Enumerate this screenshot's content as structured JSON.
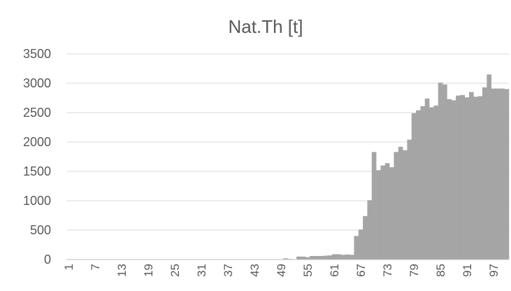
{
  "chart_data": {
    "type": "bar",
    "title": "Nat.Th [t]",
    "xlabel": "",
    "ylabel": "",
    "ylim": [
      0,
      3500
    ],
    "yticks": [
      0,
      500,
      1000,
      1500,
      2000,
      2500,
      3000,
      3500
    ],
    "xtick_labels": [
      "1",
      "7",
      "13",
      "19",
      "25",
      "31",
      "37",
      "43",
      "49",
      "55",
      "61",
      "67",
      "73",
      "79",
      "85",
      "91",
      "97"
    ],
    "grid": true,
    "legend": "none",
    "bar_color": "#a5a5a5",
    "categories": [
      1,
      2,
      3,
      4,
      5,
      6,
      7,
      8,
      9,
      10,
      11,
      12,
      13,
      14,
      15,
      16,
      17,
      18,
      19,
      20,
      21,
      22,
      23,
      24,
      25,
      26,
      27,
      28,
      29,
      30,
      31,
      32,
      33,
      34,
      35,
      36,
      37,
      38,
      39,
      40,
      41,
      42,
      43,
      44,
      45,
      46,
      47,
      48,
      49,
      50,
      51,
      52,
      53,
      54,
      55,
      56,
      57,
      58,
      59,
      60,
      61,
      62,
      63,
      64,
      65,
      66,
      67,
      68,
      69,
      70,
      71,
      72,
      73,
      74,
      75,
      76,
      77,
      78,
      79,
      80,
      81,
      82,
      83,
      84,
      85,
      86,
      87,
      88,
      89,
      90,
      91,
      92,
      93,
      94,
      95,
      96,
      97,
      98,
      99,
      100
    ],
    "values": [
      0,
      0,
      0,
      0,
      0,
      0,
      0,
      0,
      0,
      0,
      0,
      0,
      0,
      0,
      0,
      0,
      0,
      0,
      0,
      0,
      0,
      0,
      0,
      0,
      0,
      0,
      0,
      0,
      0,
      0,
      0,
      0,
      0,
      0,
      0,
      0,
      0,
      0,
      0,
      0,
      0,
      0,
      0,
      0,
      0,
      0,
      0,
      0,
      0,
      20,
      10,
      5,
      50,
      50,
      40,
      60,
      60,
      60,
      65,
      70,
      90,
      90,
      80,
      85,
      80,
      400,
      510,
      740,
      1010,
      1830,
      1520,
      1600,
      1640,
      1570,
      1830,
      1920,
      1860,
      2040,
      2490,
      2540,
      2610,
      2740,
      2590,
      2620,
      3010,
      2980,
      2730,
      2710,
      2790,
      2800,
      2760,
      2850,
      2770,
      2780,
      2930,
      3150,
      2910,
      2910,
      2910,
      2900
    ]
  }
}
